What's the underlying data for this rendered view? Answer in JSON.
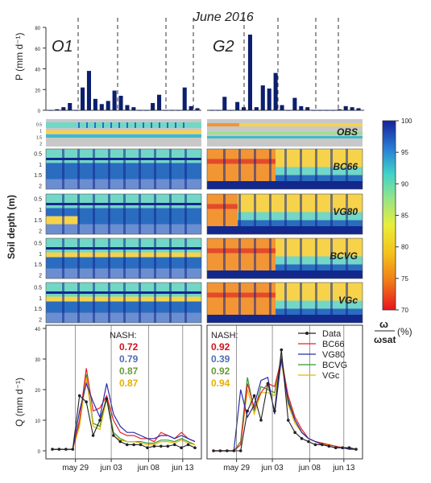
{
  "title": "June 2016",
  "chart_data": [
    {
      "type": "bar",
      "panel": "O1",
      "ylabel": "P (mm d⁻¹)",
      "yticks": [
        0,
        20,
        40,
        60,
        80
      ],
      "ylim": [
        0,
        80
      ],
      "values": [
        0,
        1,
        3,
        7,
        0,
        22,
        38,
        11,
        6,
        9,
        19,
        14,
        5,
        3,
        0,
        0,
        7,
        15,
        0,
        0,
        0,
        22,
        4,
        2
      ]
    },
    {
      "type": "bar",
      "panel": "G2",
      "values": [
        0,
        0,
        13,
        0,
        8,
        3,
        73,
        3,
        24,
        21,
        36,
        5,
        0,
        12,
        4,
        3,
        0,
        0,
        0,
        0,
        1,
        4,
        3,
        2
      ]
    },
    {
      "type": "heatmap",
      "row_labels": [
        "OBS",
        "BC66",
        "VG80",
        "BCVG",
        "VGc"
      ],
      "ylabel": "Soil depth (m)",
      "yticks": [
        "0.5",
        "1",
        "1.5",
        "2"
      ],
      "colorbar": {
        "min": 70,
        "max": 100,
        "ticks": [
          70,
          75,
          80,
          85,
          90,
          95,
          100
        ],
        "label_top": "ω",
        "label_bottom": "ωsat",
        "unit": "(%)"
      }
    },
    {
      "type": "line",
      "panel": "O1",
      "ylabel": "Q (mm d⁻¹)",
      "ylim": [
        0,
        40
      ],
      "yticks": [
        0,
        10,
        20,
        30,
        40
      ],
      "xticks": [
        "may 29",
        "jun 03",
        "jun 08",
        "jun 13"
      ],
      "nash_title": "NASH:",
      "nash": [
        "0.72",
        "0.79",
        "0.87",
        "0.87"
      ],
      "series": [
        {
          "name": "Data",
          "values": [
            0.5,
            0.5,
            0.5,
            0.5,
            18,
            16,
            5,
            10,
            17,
            5,
            3,
            2,
            2,
            2,
            1,
            1.5,
            1.5,
            1.5,
            2,
            1,
            2,
            1
          ]
        },
        {
          "name": "BC66",
          "values": [
            0.5,
            0.5,
            0.5,
            0.5,
            10,
            27,
            13,
            14,
            18,
            10,
            6,
            5,
            5,
            4,
            4,
            3,
            6,
            5,
            4,
            6,
            4,
            3
          ]
        },
        {
          "name": "VG80",
          "values": [
            0.5,
            0.5,
            0.5,
            0.5,
            13,
            22,
            16,
            11,
            22,
            12,
            8,
            6,
            6,
            5,
            4,
            4,
            5,
            5,
            4,
            5,
            4,
            3
          ]
        },
        {
          "name": "BCVG",
          "values": [
            0.5,
            0.5,
            0.5,
            0.5,
            9,
            25,
            9,
            8,
            18,
            6,
            4,
            3,
            3,
            3,
            2.5,
            2.5,
            3.5,
            3.5,
            3,
            4,
            3,
            2
          ]
        },
        {
          "name": "VGc",
          "values": [
            0.5,
            0.5,
            0.5,
            0.5,
            8,
            24,
            8,
            7,
            17,
            5,
            3.5,
            3,
            3,
            2.5,
            2,
            2,
            3,
            3,
            2.5,
            3.5,
            2.5,
            2
          ]
        }
      ]
    },
    {
      "type": "line",
      "panel": "G2",
      "xticks": [
        "may 29",
        "jun 03",
        "jun 08",
        "jun 13"
      ],
      "nash_title": "NASH:",
      "nash": [
        "0.92",
        "0.39",
        "0.92",
        "0.94"
      ],
      "series": [
        {
          "name": "Data",
          "values": [
            0,
            0,
            0,
            0,
            0,
            13,
            18,
            10,
            22,
            13,
            33,
            10,
            6,
            4,
            3,
            2,
            2,
            1.5,
            1,
            1,
            1,
            0.5
          ]
        },
        {
          "name": "BC66",
          "values": [
            0,
            0,
            0,
            0,
            2,
            22,
            14,
            19,
            22,
            21,
            30,
            18,
            11,
            7,
            4,
            3,
            2.5,
            2,
            1.5,
            1,
            1,
            0.5
          ]
        },
        {
          "name": "VG80",
          "values": [
            0,
            0,
            0,
            0,
            20,
            11,
            15,
            23,
            24,
            12,
            30,
            16,
            10,
            6,
            4,
            3,
            2,
            1.5,
            1,
            1,
            0.5,
            0.5
          ]
        },
        {
          "name": "BCVG",
          "values": [
            0,
            0,
            0,
            0,
            3,
            24,
            13,
            21,
            20,
            19,
            31,
            17,
            10,
            6,
            4,
            3,
            2.5,
            2,
            1.5,
            1,
            1,
            0.5
          ]
        },
        {
          "name": "VGc",
          "values": [
            0,
            0,
            0,
            0,
            2,
            20,
            12,
            19,
            19,
            18,
            29,
            15,
            9,
            6,
            4,
            3,
            2,
            2,
            1.5,
            1,
            1,
            0.5
          ]
        }
      ]
    }
  ],
  "legend": [
    {
      "name": "Data",
      "color": "#222222",
      "marker": true
    },
    {
      "name": "BC66",
      "color": "#e8202a"
    },
    {
      "name": "VG80",
      "color": "#2a2aa8"
    },
    {
      "name": "BCVG",
      "color": "#2f9a2f"
    },
    {
      "name": "VGc",
      "color": "#e8b800"
    }
  ],
  "nash_colors": [
    "#d0141c",
    "#4f6fb3",
    "#6a9a3c",
    "#e3b000"
  ],
  "panel_labels": [
    "O1",
    "G2"
  ]
}
